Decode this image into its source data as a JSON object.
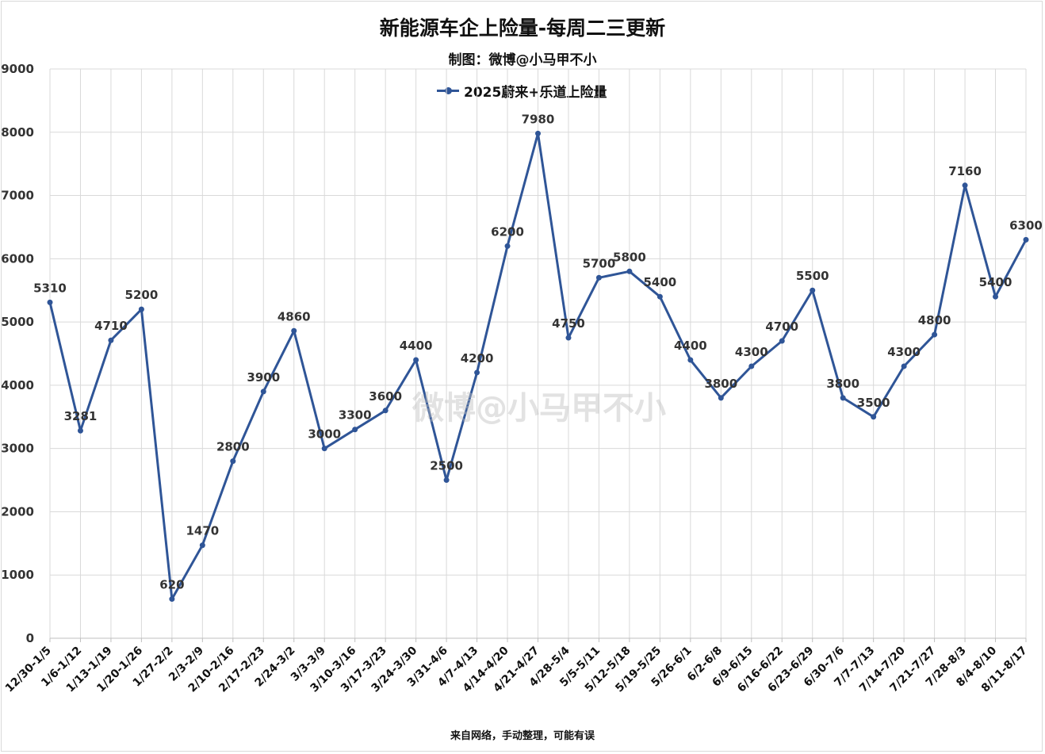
{
  "header": {
    "title": "新能源车企上险量-每周二三更新",
    "subtitle": "制图：微博@小马甲不小"
  },
  "footer": {
    "note": "来自网络，手动整理，可能有误"
  },
  "watermark": {
    "text": "微博@小马甲不小"
  },
  "colors": {
    "line": "#2f5597",
    "grid": "#d9d9d9",
    "text": "#333333"
  },
  "chart_data": {
    "type": "line",
    "title": "新能源车企上险量-每周二三更新",
    "subtitle": "制图：微博@小马甲不小",
    "xlabel": "",
    "ylabel": "",
    "ylim": [
      0,
      9000
    ],
    "yticks": [
      0,
      1000,
      2000,
      3000,
      4000,
      5000,
      6000,
      7000,
      8000,
      9000
    ],
    "grid": true,
    "legend_position": "top-center",
    "categories": [
      "12/30-1/5",
      "1/6-1/12",
      "1/13-1/19",
      "1/20-1/26",
      "1/27-2/2",
      "2/3-2/9",
      "2/10-2/16",
      "2/17-2/23",
      "2/24-3/2",
      "3/3-3/9",
      "3/10-3/16",
      "3/17-3/23",
      "3/24-3/30",
      "3/31-4/6",
      "4/7-4/13",
      "4/14-4/20",
      "4/21-4/27",
      "4/28-5/4",
      "5/5-5/11",
      "5/12-5/18",
      "5/19-5/25",
      "5/26-6/1",
      "6/2-6/8",
      "6/9-6/15",
      "6/16-6/22",
      "6/23-6/29",
      "6/30-7/6",
      "7/7-7/13",
      "7/14-7/20",
      "7/21-7/27",
      "7/28-8/3",
      "8/4-8/10",
      "8/11-8/17"
    ],
    "series": [
      {
        "name": "2025蔚来+乐道上险量",
        "values": [
          5310,
          3281,
          4710,
          5200,
          620,
          1470,
          2800,
          3900,
          4860,
          3000,
          3300,
          3600,
          4400,
          2500,
          4200,
          6200,
          7980,
          4750,
          5700,
          5800,
          5400,
          4400,
          3800,
          4300,
          4700,
          5500,
          3800,
          3500,
          4300,
          4800,
          7160,
          5400,
          6300
        ]
      }
    ]
  }
}
